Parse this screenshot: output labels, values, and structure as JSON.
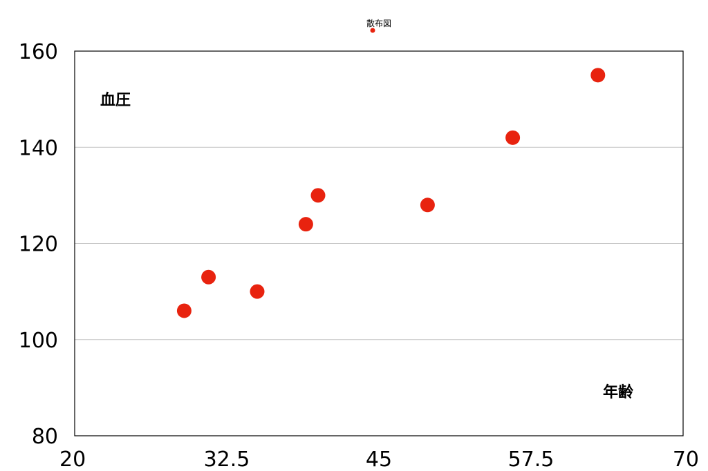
{
  "chart_data": {
    "type": "scatter",
    "title": "",
    "xlabel": "年齢",
    "ylabel": "血圧",
    "xlim": [
      20,
      70
    ],
    "ylim": [
      80,
      160
    ],
    "xticks": [
      "20",
      "32.5",
      "45",
      "57.5",
      "70"
    ],
    "yticks": [
      "80",
      "100",
      "120",
      "140",
      "160"
    ],
    "grid": "horizontal",
    "legend": "top-center",
    "series": [
      {
        "name": "散布図",
        "color": "#e8230f",
        "x": [
          29,
          31,
          35,
          39,
          40,
          49,
          56,
          63
        ],
        "y": [
          106,
          113,
          110,
          124,
          130,
          128,
          142,
          155
        ]
      }
    ]
  }
}
